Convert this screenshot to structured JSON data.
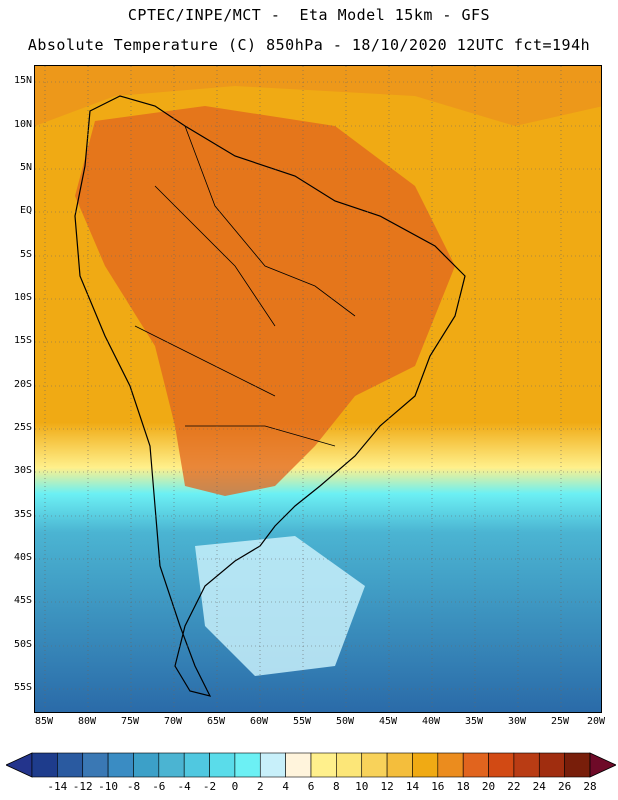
{
  "header": {
    "line1": "CPTEC/INPE/MCT -  Eta Model 15km - GFS",
    "line2": "Absolute Temperature (C) 850hPa - 18/10/2020 12UTC fct=194h"
  },
  "map": {
    "lat_labels": [
      "15N",
      "10N",
      "5N",
      "EQ",
      "5S",
      "10S",
      "15S",
      "20S",
      "25S",
      "30S",
      "35S",
      "40S",
      "45S",
      "50S",
      "55S"
    ],
    "lon_labels": [
      "85W",
      "80W",
      "75W",
      "70W",
      "65W",
      "60W",
      "55W",
      "50W",
      "45W",
      "40W",
      "35W",
      "30W",
      "25W",
      "20W"
    ]
  },
  "colorbar": {
    "tick_labels": [
      "-14",
      "-12",
      "-10",
      "-8",
      "-6",
      "-4",
      "-2",
      "0",
      "2",
      "4",
      "6",
      "8",
      "10",
      "12",
      "14",
      "16",
      "18",
      "20",
      "22",
      "24",
      "26",
      "28"
    ],
    "colors": [
      "#1e3c8c",
      "#2a5aa0",
      "#3a78b4",
      "#3a8cc3",
      "#3ca0c8",
      "#4bb4d2",
      "#50c8e0",
      "#5adcea",
      "#6cf0f4",
      "#c8f0fa",
      "#fff4dc",
      "#fff08c",
      "#fce678",
      "#f8d25a",
      "#f4be3c",
      "#f0aa14",
      "#eb8c1e",
      "#e1641e",
      "#d24a14",
      "#b93c14",
      "#a02d0f",
      "#781e0a"
    ]
  }
}
